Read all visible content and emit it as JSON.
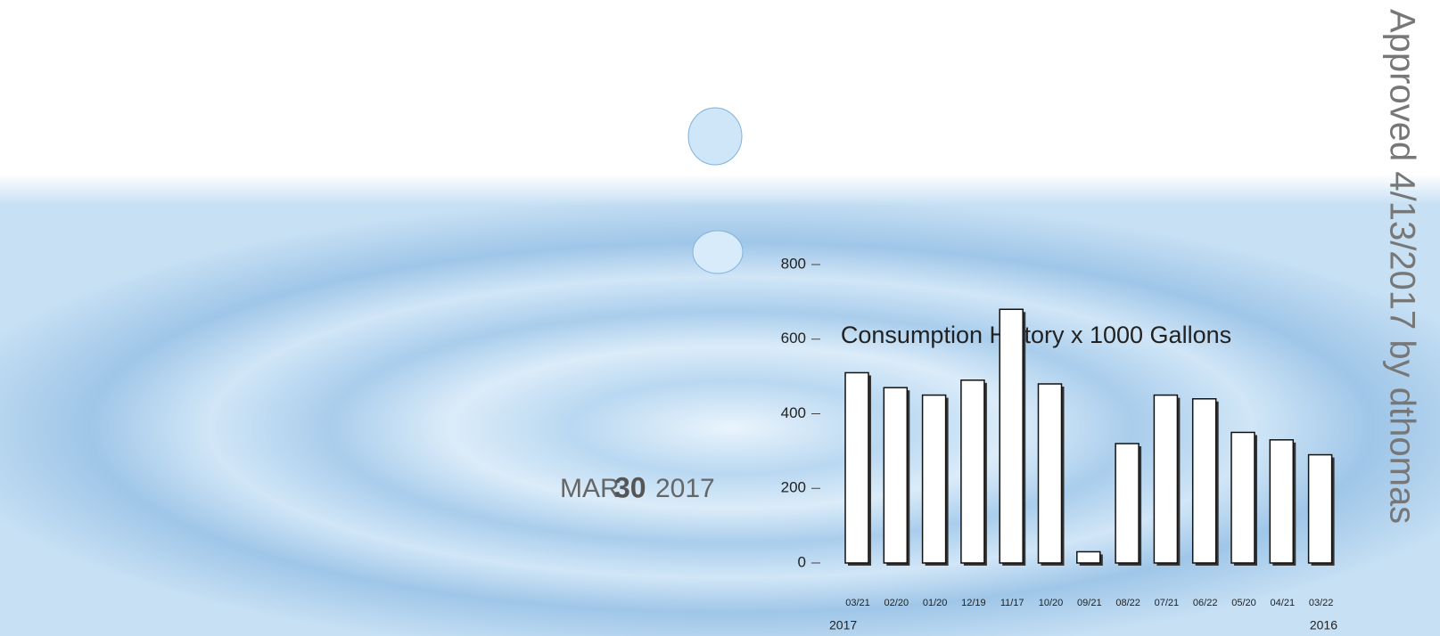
{
  "chart_data": {
    "type": "bar",
    "title": "Consumption History x 1000 Gallons",
    "categories": [
      "03/21",
      "02/20",
      "01/20",
      "12/19",
      "11/17",
      "10/20",
      "09/21",
      "08/22",
      "07/21",
      "06/22",
      "05/20",
      "04/21",
      "03/22"
    ],
    "values": [
      510,
      470,
      450,
      490,
      680,
      480,
      30,
      320,
      450,
      440,
      350,
      330,
      290
    ],
    "color": "#ffffff",
    "ylim": [
      0,
      800
    ],
    "yticks": [
      0,
      200,
      400,
      600,
      800
    ],
    "period_start": "2017",
    "period_end": "2016"
  },
  "stamp": {
    "month": "MAR",
    "day": "30",
    "year": "2017"
  },
  "approval": "Approved 4/13/2017 by dthomas"
}
